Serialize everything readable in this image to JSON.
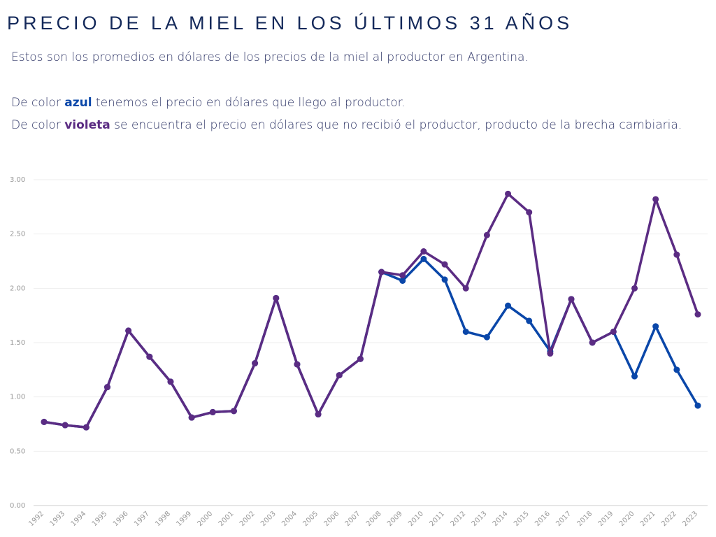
{
  "chart_data": {
    "type": "line",
    "title": "PRECIO DE LA MIEL EN LOS ÚLTIMOS 31 AÑOS",
    "subtitle": "Estos son los promedios en dólares de los precios de la miel al productor en Argentina.",
    "notes": [
      {
        "before": "De color ",
        "highlight": "azul",
        "after": " tenemos el precio en dólares que llego al productor."
      },
      {
        "before": "De color ",
        "highlight": "violeta",
        "after": " se encuentra el precio en dólares que no recibió el productor, producto de la brecha cambiaria."
      }
    ],
    "categories": [
      "1992",
      "1993",
      "1994",
      "1995",
      "1996",
      "1997",
      "1998",
      "1999",
      "2000",
      "2001",
      "2002",
      "2003",
      "2004",
      "2005",
      "2006",
      "2007",
      "2008",
      "2009",
      "2010",
      "2011",
      "2012",
      "2013",
      "2014",
      "2015",
      "2016",
      "2017",
      "2018",
      "2019",
      "2020",
      "2021",
      "2022",
      "2023"
    ],
    "series": [
      {
        "color": "#0a47a9",
        "values": [
          0.77,
          0.74,
          0.72,
          1.09,
          1.61,
          1.37,
          1.14,
          0.81,
          0.86,
          0.87,
          1.31,
          1.91,
          1.3,
          0.84,
          1.2,
          1.35,
          2.15,
          2.07,
          2.27,
          2.08,
          1.6,
          1.55,
          1.84,
          1.7,
          1.42,
          1.9,
          1.5,
          1.6,
          1.19,
          1.65,
          1.25,
          0.92
        ]
      },
      {
        "color": "#5b2c83",
        "values": [
          0.77,
          0.74,
          0.72,
          1.09,
          1.61,
          1.37,
          1.14,
          0.81,
          0.86,
          0.87,
          1.31,
          1.91,
          1.3,
          0.84,
          1.2,
          1.35,
          2.15,
          2.12,
          2.34,
          2.22,
          2.0,
          2.49,
          2.87,
          2.7,
          1.4,
          1.9,
          1.5,
          1.6,
          2.0,
          2.82,
          2.31,
          1.76
        ]
      }
    ],
    "ylim": [
      0,
      3
    ],
    "yticks": [
      {
        "value": 0,
        "label": "0.00"
      },
      {
        "value": 0.5,
        "label": "0.50"
      },
      {
        "value": 1,
        "label": "1.00"
      },
      {
        "value": 1.5,
        "label": "1.50"
      },
      {
        "value": 2,
        "label": "2.00"
      },
      {
        "value": 2.5,
        "label": "2.50"
      },
      {
        "value": 3,
        "label": "3.00"
      }
    ],
    "grid": true
  }
}
